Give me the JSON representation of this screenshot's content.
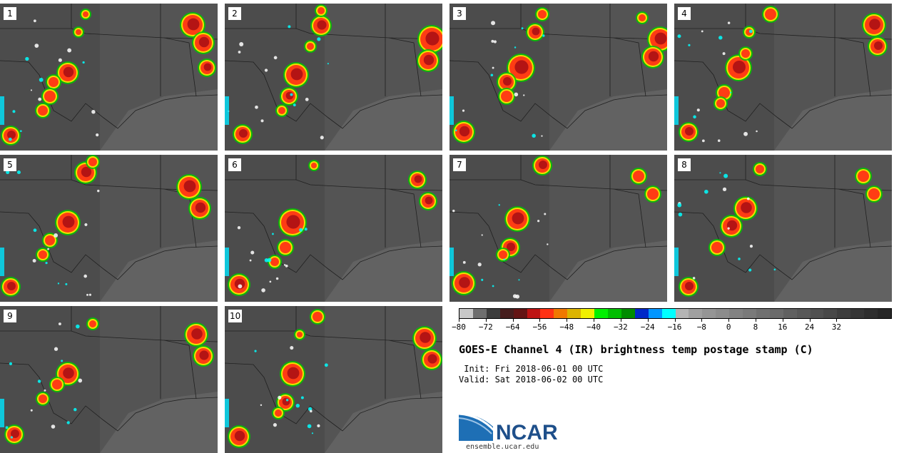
{
  "panels": [
    {
      "number": "1"
    },
    {
      "number": "2"
    },
    {
      "number": "3"
    },
    {
      "number": "4"
    },
    {
      "number": "5"
    },
    {
      "number": "6"
    },
    {
      "number": "7"
    },
    {
      "number": "8"
    },
    {
      "number": "9"
    },
    {
      "number": "10"
    }
  ],
  "colorbar": {
    "colors": [
      "#c8c8c8",
      "#6e6e6e",
      "#3c3c3c",
      "#461e1e",
      "#641414",
      "#be1414",
      "#ff3214",
      "#f07800",
      "#dcb400",
      "#f0f000",
      "#00f000",
      "#00be00",
      "#008c00",
      "#0028c8",
      "#0096ff",
      "#00ffff",
      "#b4b4b4",
      "#a0a0a0",
      "#959595",
      "#8c8c8c",
      "#828282",
      "#7a7a7a",
      "#707070",
      "#6a6a6a",
      "#606060",
      "#585858",
      "#505050",
      "#484848",
      "#3e3e3e",
      "#363636",
      "#2e2e2e",
      "#262626"
    ],
    "tick_labels": [
      "-80",
      "-72",
      "-64",
      "-56",
      "-48",
      "-40",
      "-32",
      "-24",
      "-16",
      "-8",
      "0",
      "8",
      "16",
      "24",
      "32"
    ]
  },
  "title": "GOES-E Channel 4 (IR) brightness temp postage stamp (C)",
  "init_line": " Init: Fri 2018-06-01 00 UTC",
  "valid_line": "Valid: Sat 2018-06-02 00 UTC",
  "logo_text": "NCAR",
  "url": "ensemble.ucar.edu"
}
